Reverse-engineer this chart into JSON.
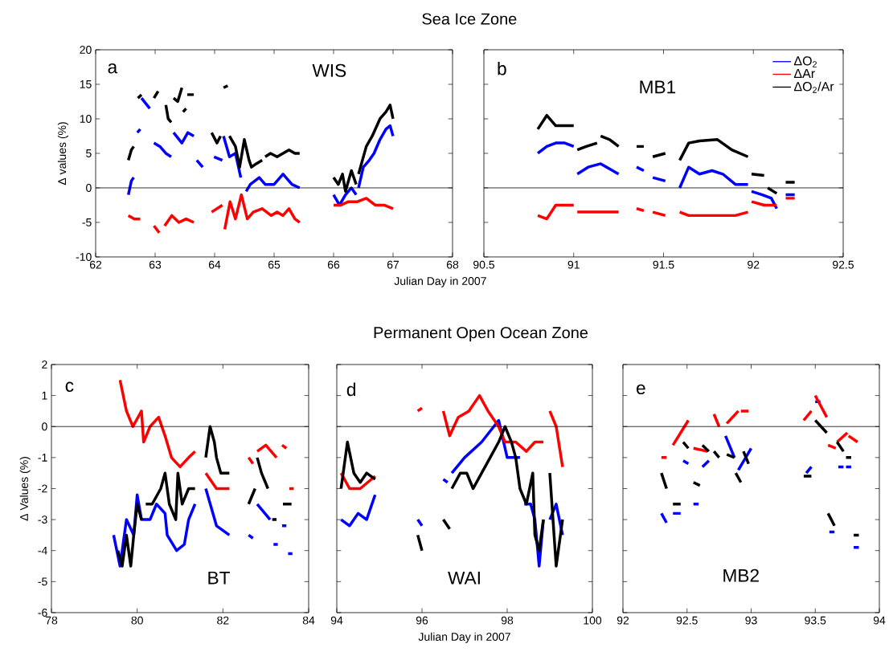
{
  "chart_data": [
    {
      "type": "line",
      "title": "Sea Ice Zone",
      "xlabel": "Julian Day in 2007",
      "ylabel": "Δ values (%)",
      "annotations": [
        "a",
        "WIS"
      ],
      "xlim": [
        62,
        68
      ],
      "xticks": [
        62,
        63,
        64,
        65,
        66,
        67,
        68
      ],
      "ylim": [
        -10,
        20
      ],
      "yticks": [
        -10,
        -5,
        0,
        5,
        10,
        15,
        20
      ],
      "ref_lines": [
        {
          "axis": "y",
          "value": 0,
          "color": "#000000"
        }
      ],
      "series": [
        {
          "color": "#0000ff",
          "x": [
            62.55,
            62.6,
            62.64,
            null,
            62.7,
            62.75,
            null,
            62.77,
            62.91,
            null,
            62.98,
            63.08,
            63.18,
            63.27,
            null,
            63.31,
            63.45,
            63.55,
            63.65,
            null,
            63.7,
            63.8,
            null,
            63.99,
            64.13,
            null,
            64.15,
            64.25,
            64.35,
            64.44,
            null,
            64.53,
            64.6,
            64.75,
            64.85,
            65.0,
            65.15,
            65.3,
            65.43,
            null,
            66.0,
            66.1,
            66.2,
            66.3,
            66.38,
            null,
            66.42,
            66.5,
            66.6,
            66.68,
            66.78,
            66.88,
            66.95,
            67.0
          ],
          "values": [
            -1,
            1,
            1.5,
            null,
            8,
            8.5,
            null,
            13,
            11.5,
            null,
            6.5,
            6,
            5,
            4.5,
            null,
            8,
            6.5,
            8,
            7.5,
            null,
            4,
            3,
            null,
            4.5,
            4,
            null,
            7.5,
            4.5,
            5,
            1.5,
            null,
            -0.5,
            0.5,
            1.5,
            0.5,
            0.5,
            2,
            0.5,
            0,
            null,
            -1,
            -2.5,
            -1,
            0,
            -1,
            null,
            0,
            3,
            4,
            5,
            7,
            8.5,
            9,
            7.5
          ]
        },
        {
          "color": "#ff0000",
          "x": [
            62.55,
            62.65,
            62.75,
            null,
            62.98,
            63.07,
            null,
            63.16,
            63.28,
            63.4,
            63.52,
            63.65,
            null,
            63.95,
            64.13,
            null,
            64.17,
            64.26,
            64.35,
            64.45,
            64.55,
            64.65,
            64.8,
            64.95,
            65.05,
            65.15,
            65.25,
            65.35,
            65.43,
            null,
            66.0,
            66.12,
            66.25,
            66.4,
            66.55,
            66.7,
            66.85,
            67.0
          ],
          "values": [
            -4,
            -4.5,
            -4.5,
            null,
            -5.5,
            -6.5,
            null,
            -5.5,
            -4,
            -5,
            -4.5,
            -5,
            null,
            -3.5,
            -2.5,
            null,
            -6,
            -2,
            -4.5,
            -1,
            -4.5,
            -3.5,
            -3,
            -4,
            -3.5,
            -4,
            -3,
            -4.5,
            -5,
            null,
            -2.5,
            -2.5,
            -2,
            -2,
            -1.5,
            -2.5,
            -2.5,
            -3
          ]
        },
        {
          "color": "#000000",
          "x": [
            62.55,
            62.6,
            62.64,
            null,
            62.71,
            62.77,
            null,
            62.98,
            63.05,
            null,
            63.18,
            63.22,
            63.27,
            null,
            63.31,
            63.38,
            63.45,
            null,
            63.47,
            63.52,
            null,
            63.54,
            63.65,
            null,
            63.95,
            64.04,
            64.1,
            null,
            64.15,
            64.22,
            null,
            64.25,
            64.35,
            64.42,
            64.5,
            64.58,
            64.62,
            64.7,
            64.8,
            null,
            64.85,
            64.94,
            65.05,
            65.15,
            65.25,
            65.35,
            65.43,
            null,
            66.0,
            66.08,
            66.15,
            66.2,
            66.3,
            66.38,
            null,
            66.42,
            66.55,
            66.65,
            66.78,
            66.88,
            66.95,
            67.0
          ],
          "values": [
            4,
            5.5,
            6,
            null,
            13,
            13.5,
            null,
            13,
            14,
            null,
            12,
            10,
            9.5,
            null,
            13,
            12.5,
            14.5,
            null,
            11,
            11.5,
            null,
            13.5,
            13.5,
            null,
            8,
            6.5,
            7.5,
            null,
            14.5,
            14.8,
            null,
            7.5,
            6,
            3,
            7,
            4,
            3,
            3.5,
            4,
            null,
            4.5,
            5,
            4.5,
            5,
            5.5,
            5,
            5,
            null,
            1.5,
            0.5,
            2,
            -0.5,
            2.5,
            0.5,
            null,
            2,
            6,
            7.5,
            10,
            11,
            12,
            10
          ]
        }
      ]
    },
    {
      "type": "line",
      "annotations": [
        "b",
        "MB1"
      ],
      "legend": "top right",
      "tick_labels": "x",
      "xlim": [
        90.5,
        92.5
      ],
      "xticks": [
        90.5,
        91,
        91.5,
        92,
        92.5
      ],
      "ylim": [
        -10,
        20
      ],
      "yticks": [
        -10,
        -5,
        0,
        5,
        10,
        15,
        20
      ],
      "ref_lines": [
        {
          "axis": "y",
          "value": 0,
          "color": "#000000"
        }
      ],
      "series": [
        {
          "name": "ΔO$_{2}$",
          "color": "#0000ff",
          "x": [
            90.8,
            90.85,
            90.9,
            90.95,
            91.0,
            null,
            91.02,
            91.08,
            91.15,
            91.25,
            null,
            91.35,
            91.39,
            null,
            91.44,
            91.51,
            null,
            91.59,
            91.64,
            91.7,
            91.77,
            91.83,
            91.9,
            91.97,
            null,
            91.99,
            92.05,
            92.1,
            92.13,
            null,
            92.18,
            92.23
          ],
          "values": [
            5,
            6,
            6.5,
            6.5,
            6,
            null,
            2,
            3,
            3.5,
            2,
            null,
            3,
            2.5,
            null,
            1.5,
            1,
            null,
            0,
            3,
            2,
            2.5,
            2,
            0.5,
            0.5,
            null,
            -0.5,
            -1,
            -1.5,
            -3,
            null,
            -1,
            -1
          ]
        },
        {
          "name": "ΔAr",
          "color": "#ff0000",
          "x": [
            90.8,
            90.85,
            90.9,
            90.95,
            91.0,
            null,
            91.02,
            91.1,
            91.18,
            91.25,
            null,
            91.35,
            91.39,
            null,
            91.44,
            91.51,
            null,
            91.59,
            91.64,
            91.7,
            91.77,
            91.83,
            91.9,
            91.97,
            null,
            91.99,
            92.06,
            92.13,
            null,
            92.18,
            92.23
          ],
          "values": [
            -4,
            -4.5,
            -2.5,
            -2.5,
            -2.5,
            null,
            -3.5,
            -3.5,
            -3.5,
            -3.5,
            null,
            -3,
            -3.3,
            null,
            -3.5,
            -4,
            null,
            -3.5,
            -4,
            -4,
            -4,
            -4,
            -4,
            -3.5,
            null,
            -2,
            -2.5,
            -2.5,
            null,
            -1.5,
            -1.5
          ]
        },
        {
          "name": "ΔO$_{2}$/Ar",
          "color": "#000000",
          "x": [
            90.8,
            90.85,
            90.9,
            90.95,
            91.0,
            null,
            91.02,
            91.07,
            91.13,
            null,
            91.15,
            91.2,
            91.25,
            null,
            91.35,
            91.39,
            null,
            91.44,
            91.51,
            null,
            91.59,
            91.64,
            91.7,
            91.8,
            91.88,
            91.97,
            null,
            91.99,
            92.06,
            null,
            92.08,
            92.13,
            null,
            92.18,
            92.23
          ],
          "values": [
            8.5,
            10.5,
            9,
            9,
            9,
            null,
            5.5,
            6,
            6.5,
            null,
            7.5,
            7,
            6,
            null,
            6,
            6,
            null,
            4.5,
            5,
            null,
            4,
            6.5,
            6.8,
            7,
            5.5,
            4.5,
            null,
            2,
            1.8,
            null,
            0,
            -0.8,
            null,
            0.8,
            0.8
          ]
        }
      ]
    },
    {
      "type": "line",
      "ylabel": "Δ Values (%)",
      "annotations": [
        "c",
        "BT"
      ],
      "xlim": [
        78,
        84
      ],
      "xticks": [
        78,
        80,
        82,
        84
      ],
      "ylim": [
        -6,
        2
      ],
      "yticks": [
        -6,
        -5,
        -4,
        -3,
        -2,
        -1,
        0,
        1,
        2
      ],
      "ref_lines": [
        {
          "axis": "y",
          "value": 0,
          "color": "#000000"
        }
      ],
      "series": [
        {
          "color": "#0000ff",
          "x": [
            79.45,
            79.6,
            79.75,
            79.92,
            80.0,
            80.1,
            80.2,
            80.3,
            80.45,
            80.65,
            80.7,
            80.92,
            81.1,
            81.2,
            81.35,
            null,
            81.6,
            81.85,
            82.15,
            null,
            82.6,
            82.7,
            null,
            82.8,
            83.1,
            null,
            83.18,
            83.28,
            null,
            83.38,
            83.48,
            null,
            83.52,
            83.62
          ],
          "values": [
            -3.5,
            -4.5,
            -3,
            -3.5,
            -2.2,
            -3,
            -3,
            -3,
            -2.5,
            -2.8,
            -3.5,
            -4,
            -3.8,
            -3,
            -2.5,
            null,
            -2,
            -3.2,
            -3.5,
            null,
            -3.5,
            -3.6,
            null,
            -2.5,
            -3,
            null,
            -3.8,
            -3.8,
            null,
            -3.2,
            -3.2,
            null,
            -4.1,
            -4.1
          ]
        },
        {
          "color": "#ff0000",
          "x": [
            79.6,
            79.75,
            79.9,
            80.1,
            80.15,
            80.3,
            80.5,
            80.65,
            80.8,
            81.0,
            81.2,
            81.35,
            null,
            81.6,
            81.85,
            82.15,
            null,
            82.6,
            82.7,
            null,
            82.8,
            83.0,
            83.25,
            null,
            83.38,
            83.48,
            null,
            83.55,
            83.65
          ],
          "values": [
            1.5,
            0.5,
            0,
            0.5,
            -0.5,
            0,
            0.3,
            -0.3,
            -1,
            -1.3,
            -1,
            -0.8,
            null,
            -1.5,
            -2,
            -2,
            null,
            -1,
            -1.2,
            null,
            -0.8,
            -0.6,
            -1,
            null,
            -0.6,
            -0.7,
            null,
            -2,
            -2
          ]
        },
        {
          "color": "#000000",
          "x": [
            79.55,
            79.65,
            79.75,
            79.85,
            79.92,
            80.0,
            80.1,
            null,
            80.2,
            80.35,
            80.55,
            80.65,
            80.75,
            80.9,
            80.95,
            81.05,
            81.2,
            81.35,
            null,
            81.6,
            81.7,
            81.8,
            81.85,
            81.95,
            82.15,
            null,
            82.6,
            82.75,
            null,
            82.8,
            82.9,
            83.05,
            null,
            83.15,
            83.25,
            null,
            83.4,
            83.6
          ],
          "values": [
            -4,
            -4.5,
            -3.5,
            -4.5,
            -3.5,
            -2.5,
            -3,
            null,
            -2.5,
            -2.5,
            -2,
            -1.5,
            -2.5,
            -3,
            -1.5,
            -2.5,
            -2,
            -2,
            null,
            -1,
            0,
            -0.5,
            -1,
            -1.5,
            -1.5,
            null,
            -2.5,
            -2,
            null,
            -1,
            -1.5,
            -2,
            null,
            -3,
            -3,
            null,
            -2.5,
            -2.5
          ]
        }
      ]
    },
    {
      "type": "line",
      "title": "Permanent Open Ocean Zone",
      "xlabel": "Julian Day in 2007",
      "annotations": [
        "d",
        "WAI"
      ],
      "tick_labels": "x",
      "xlim": [
        94,
        100
      ],
      "xticks": [
        94,
        96,
        98,
        100
      ],
      "ylim": [
        -6,
        2
      ],
      "yticks": [
        -6,
        -5,
        -4,
        -3,
        -2,
        -1,
        0,
        1,
        2
      ],
      "ref_lines": [
        {
          "axis": "y",
          "value": 0,
          "color": "#000000"
        }
      ],
      "series": [
        {
          "color": "#0000ff",
          "x": [
            94.1,
            94.3,
            94.5,
            94.7,
            94.9,
            null,
            95.9,
            96.0,
            null,
            96.5,
            96.6,
            null,
            96.7,
            97.0,
            97.4,
            97.8,
            98.0,
            98.3,
            null,
            98.4,
            98.55,
            98.65,
            98.75,
            98.85,
            null,
            99.0,
            99.15,
            99.3
          ],
          "values": [
            -3,
            -3.2,
            -2.8,
            -3,
            -2.2,
            null,
            -3,
            -3.2,
            null,
            -1.7,
            -1.8,
            null,
            -1.5,
            -1,
            -0.5,
            0.2,
            -1,
            -1,
            null,
            -2.5,
            -2.5,
            -3,
            -4.5,
            -3,
            null,
            -3,
            -2.5,
            -3.5
          ]
        },
        {
          "color": "#ff0000",
          "x": [
            94.1,
            94.3,
            94.55,
            94.9,
            null,
            95.9,
            96.0,
            null,
            96.5,
            96.65,
            96.85,
            97.1,
            97.35,
            97.55,
            97.8,
            97.95,
            98.2,
            98.45,
            98.65,
            98.85,
            null,
            99.0,
            99.15,
            99.3
          ],
          "values": [
            -1.5,
            -2,
            -2,
            -1.6,
            null,
            0.5,
            0.6,
            null,
            0.5,
            -0.3,
            0.3,
            0.5,
            1.0,
            0.5,
            0,
            -0.5,
            -0.5,
            -0.8,
            -0.5,
            -0.5,
            null,
            0.5,
            0,
            -1.3
          ]
        },
        {
          "color": "#000000",
          "x": [
            94.1,
            94.25,
            94.4,
            94.55,
            94.7,
            94.9,
            null,
            95.9,
            96.0,
            null,
            96.5,
            96.65,
            null,
            96.7,
            96.9,
            97.05,
            97.2,
            97.4,
            97.6,
            97.8,
            97.95,
            98.1,
            98.2,
            98.3,
            98.45,
            98.6,
            98.65,
            98.75,
            98.85,
            null,
            99.0,
            99.15,
            99.3
          ],
          "values": [
            -2,
            -0.5,
            -1.5,
            -1.8,
            -1.5,
            -1.7,
            null,
            -3.5,
            -4,
            null,
            -3,
            -3.3,
            null,
            -2,
            -1.5,
            -1.5,
            -2,
            -1.5,
            -1,
            -0.5,
            0,
            -0.5,
            -1,
            -2,
            -2.5,
            -1.5,
            -3.5,
            -4,
            -3,
            null,
            -1.5,
            -4.5,
            -3
          ]
        }
      ]
    },
    {
      "type": "line",
      "annotations": [
        "e",
        "MB2"
      ],
      "tick_labels": "x",
      "xlim": [
        92,
        94
      ],
      "xticks": [
        92,
        92.5,
        93,
        93.5,
        94
      ],
      "ylim": [
        -6,
        2
      ],
      "yticks": [
        -6,
        -5,
        -4,
        -3,
        -2,
        -1,
        0,
        1,
        2
      ],
      "ref_lines": [
        {
          "axis": "y",
          "value": 0,
          "color": "#000000"
        }
      ],
      "series": [
        {
          "color": "#0000ff",
          "x": [
            92.3,
            92.34,
            null,
            92.39,
            92.45,
            null,
            92.47,
            92.51,
            null,
            92.55,
            92.59,
            null,
            92.62,
            92.67,
            null,
            92.8,
            92.87,
            null,
            92.9,
            93.0,
            null,
            93.43,
            93.47,
            null,
            93.5,
            93.54,
            null,
            93.61,
            93.65,
            null,
            93.68,
            93.72,
            null,
            93.74,
            93.78,
            null,
            93.8,
            93.84
          ],
          "values": [
            -2.8,
            -3.1,
            null,
            -2.8,
            -2.8,
            null,
            -1.1,
            -1.2,
            null,
            -2.5,
            -2.5,
            null,
            -1.3,
            -1.1,
            null,
            -0.3,
            -1,
            null,
            -1.4,
            -0.7,
            null,
            -1.5,
            -1.3,
            null,
            0.8,
            0.8,
            null,
            -3.4,
            -3.4,
            null,
            -1.3,
            -1.3,
            null,
            -1.3,
            -1.3,
            null,
            -3.9,
            -3.9
          ]
        },
        {
          "color": "#ff0000",
          "x": [
            92.3,
            92.34,
            null,
            92.39,
            92.51,
            null,
            92.55,
            92.66,
            null,
            92.71,
            92.75,
            null,
            92.81,
            92.9,
            null,
            92.92,
            92.98,
            null,
            93.41,
            93.47,
            null,
            93.5,
            93.59,
            null,
            93.6,
            93.66,
            null,
            93.67,
            93.75,
            null,
            93.76,
            93.83
          ],
          "values": [
            -1,
            -1,
            null,
            -0.6,
            0.2,
            null,
            -0.7,
            -0.8,
            null,
            0.4,
            0,
            null,
            0.1,
            0.5,
            null,
            0.5,
            0.5,
            null,
            0.2,
            0.5,
            null,
            1,
            0.3,
            null,
            -0.6,
            -0.7,
            null,
            -0.5,
            -0.2,
            null,
            -0.3,
            -0.5
          ]
        },
        {
          "color": "#000000",
          "x": [
            92.3,
            92.34,
            null,
            92.39,
            92.45,
            null,
            92.47,
            92.51,
            null,
            92.55,
            92.6,
            null,
            92.62,
            92.67,
            null,
            92.71,
            92.75,
            null,
            92.81,
            92.87,
            null,
            92.88,
            92.92,
            null,
            92.94,
            92.98,
            null,
            93.41,
            93.47,
            null,
            93.5,
            93.59,
            null,
            93.6,
            93.65,
            null,
            93.67,
            93.72,
            null,
            93.74,
            93.78,
            null,
            93.8,
            93.84
          ],
          "values": [
            -1.5,
            -2,
            null,
            -2.5,
            -2.5,
            null,
            -0.5,
            -0.7,
            null,
            -1.8,
            -1.9,
            null,
            -0.6,
            -0.8,
            null,
            -0.8,
            -1,
            null,
            -0.9,
            -1,
            null,
            -1.5,
            -1.8,
            null,
            -0.8,
            -1.2,
            null,
            -1.6,
            -1.6,
            null,
            0.2,
            -0.2,
            null,
            -2.8,
            -3.2,
            null,
            -0.5,
            -0.8,
            null,
            -1,
            -1,
            null,
            -3.5,
            -3.5
          ]
        }
      ]
    }
  ]
}
